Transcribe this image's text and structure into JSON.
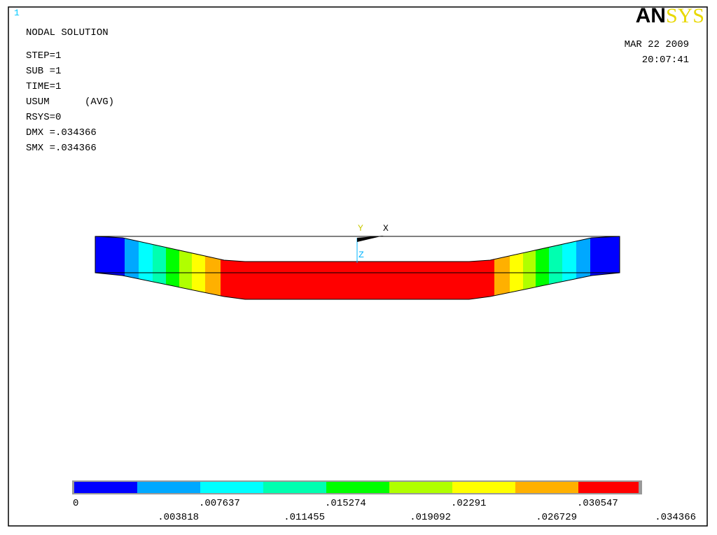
{
  "window_number": "1",
  "info": [
    "NODAL SOLUTION",
    "STEP=1",
    "SUB =1",
    "TIME=1",
    "USUM      (AVG)",
    "RSYS=0",
    "DMX =.034366",
    "SMX =.034366"
  ],
  "logo": {
    "left": "AN",
    "right": "SYS"
  },
  "date": "MAR 22 2009",
  "time": "20:07:41",
  "triad": {
    "y": "Y",
    "x": "X",
    "z": "Z"
  },
  "legend": {
    "labels": [
      "0",
      ".003818",
      ".007637",
      ".011455",
      ".015274",
      ".019092",
      ".02291",
      ".026729",
      ".030547",
      ".034366"
    ],
    "colors": [
      "#0000ff",
      "#00a8ff",
      "#00ffff",
      "#00ffb0",
      "#00ff00",
      "#b0ff00",
      "#ffff00",
      "#ffb000",
      "#ff0000"
    ]
  }
}
